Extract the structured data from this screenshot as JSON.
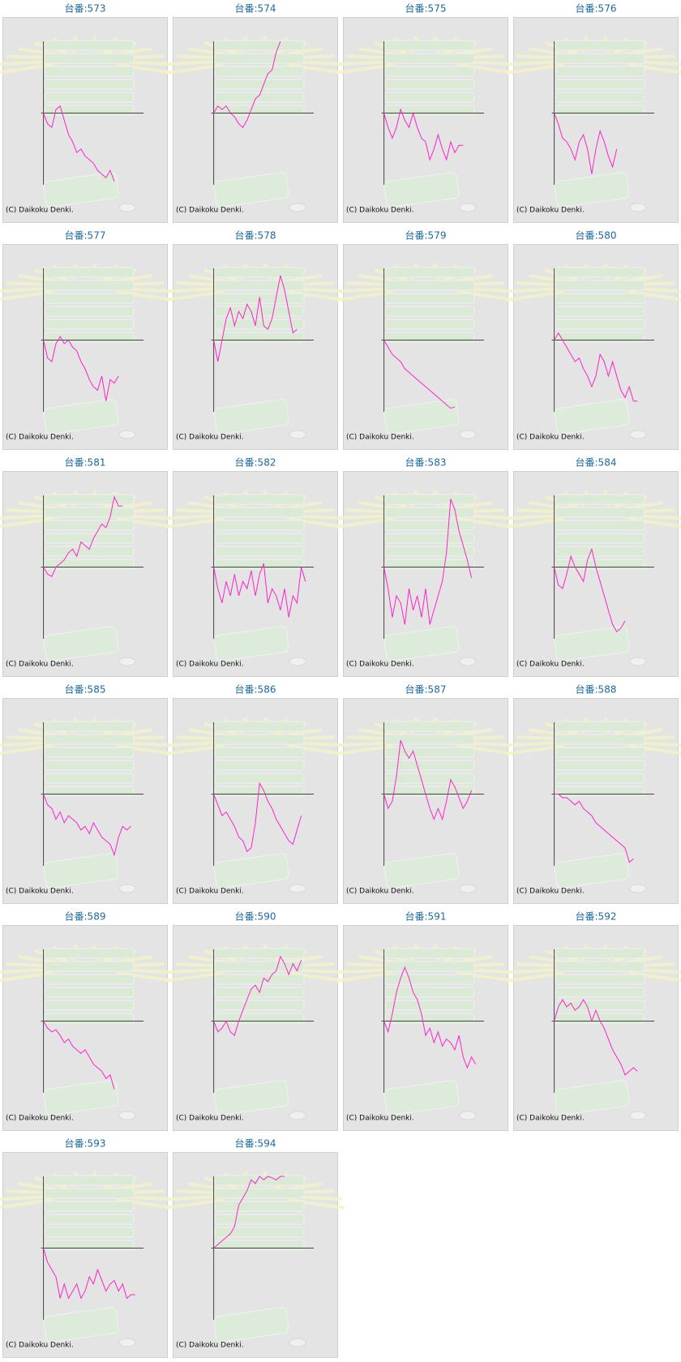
{
  "chart_data": [
    {
      "type": "line",
      "title": "台番:573",
      "footer": "(C) Daikoku Denki.",
      "color": "#ff22cc",
      "xlim": [
        0,
        24
      ],
      "ylim": [
        -10,
        10
      ],
      "values": [
        0,
        -1.5,
        -2,
        0.5,
        1,
        -1,
        -3,
        -4,
        -5.5,
        -5,
        -6,
        -6.5,
        -7,
        -8,
        -8.5,
        -9,
        -8,
        -9.5
      ]
    },
    {
      "type": "line",
      "title": "台番:574",
      "footer": "(C) Daikoku Denki.",
      "color": "#ff22cc",
      "xlim": [
        0,
        24
      ],
      "ylim": [
        -10,
        10
      ],
      "values": [
        0,
        1,
        0.5,
        1,
        0,
        -0.5,
        -1.5,
        -2,
        -1,
        0.5,
        2,
        2.5,
        4,
        5.5,
        6,
        8.5,
        10
      ]
    },
    {
      "type": "line",
      "title": "台番:575",
      "footer": "(C) Daikoku Denki.",
      "color": "#ff22cc",
      "xlim": [
        0,
        24
      ],
      "ylim": [
        -10,
        10
      ],
      "values": [
        0,
        -2,
        -3.5,
        -2,
        0.5,
        -1,
        -2,
        0,
        -2,
        -3.5,
        -4,
        -6.5,
        -5,
        -3,
        -5,
        -6.5,
        -4,
        -5.5,
        -4.5,
        -4.5
      ]
    },
    {
      "type": "line",
      "title": "台番:576",
      "footer": "(C) Daikoku Denki.",
      "color": "#ff22cc",
      "xlim": [
        0,
        24
      ],
      "ylim": [
        -10,
        10
      ],
      "values": [
        0,
        -1.5,
        -3.5,
        -4,
        -5,
        -6.5,
        -4,
        -3,
        -5,
        -8.5,
        -5,
        -2.5,
        -4,
        -6,
        -7.5,
        -5
      ]
    },
    {
      "type": "line",
      "title": "台番:577",
      "footer": "(C) Daikoku Denki.",
      "color": "#ff22cc",
      "xlim": [
        0,
        24
      ],
      "ylim": [
        -10,
        10
      ],
      "values": [
        0,
        -2.5,
        -3,
        -0.5,
        0.5,
        -0.5,
        0,
        -1,
        -1.5,
        -3,
        -4,
        -5.5,
        -6.5,
        -7,
        -5,
        -8.5,
        -5.5,
        -6,
        -5
      ]
    },
    {
      "type": "line",
      "title": "台番:578",
      "footer": "(C) Daikoku Denki.",
      "color": "#ff22cc",
      "xlim": [
        0,
        24
      ],
      "ylim": [
        -10,
        10
      ],
      "values": [
        0,
        -3,
        0,
        3,
        4.5,
        2,
        4,
        3,
        5,
        4,
        2,
        6,
        2,
        1.5,
        3,
        6,
        9,
        7,
        4,
        1,
        1.5
      ]
    },
    {
      "type": "line",
      "title": "台番:579",
      "footer": "(C) Daikoku Denki.",
      "color": "#ff22cc",
      "xlim": [
        0,
        24
      ],
      "ylim": [
        -10,
        10
      ],
      "values": [
        0,
        -1,
        -2,
        -2.5,
        -3,
        -4,
        -4.5,
        -5,
        -5.5,
        -6,
        -6.5,
        -7,
        -7.5,
        -8,
        -8.5,
        -9,
        -9.5,
        -9.3
      ]
    },
    {
      "type": "line",
      "title": "台番:580",
      "footer": "(C) Daikoku Denki.",
      "color": "#ff22cc",
      "xlim": [
        0,
        24
      ],
      "ylim": [
        -10,
        10
      ],
      "values": [
        0,
        1,
        0,
        -1,
        -2,
        -3,
        -2.5,
        -4,
        -5,
        -6.5,
        -5,
        -2,
        -3,
        -5,
        -3,
        -5,
        -7,
        -8,
        -6.5,
        -8.5,
        -8.5
      ]
    },
    {
      "type": "line",
      "title": "台番:581",
      "footer": "(C) Daikoku Denki.",
      "color": "#ff22cc",
      "xlim": [
        0,
        24
      ],
      "ylim": [
        -10,
        10
      ],
      "values": [
        0,
        -1,
        -1.3,
        0,
        0.5,
        1,
        2,
        2.5,
        1.5,
        3.5,
        3,
        2.5,
        4,
        5,
        6,
        5.5,
        7,
        9.8,
        8.5,
        8.5
      ]
    },
    {
      "type": "line",
      "title": "台番:582",
      "footer": "(C) Daikoku Denki.",
      "color": "#ff22cc",
      "xlim": [
        0,
        24
      ],
      "ylim": [
        -10,
        10
      ],
      "values": [
        0,
        -3,
        -5,
        -2,
        -4,
        -1,
        -4,
        -2,
        -3,
        -0.5,
        -4,
        -1,
        0.5,
        -5,
        -3,
        -4,
        -6,
        -3,
        -7,
        -4,
        -5,
        0,
        -2
      ]
    },
    {
      "type": "line",
      "title": "台番:583",
      "footer": "(C) Daikoku Denki.",
      "color": "#ff22cc",
      "xlim": [
        0,
        24
      ],
      "ylim": [
        -10,
        10
      ],
      "values": [
        0,
        -3,
        -7,
        -4,
        -5,
        -8,
        -3,
        -6,
        -4,
        -7,
        -3,
        -8,
        -6,
        -4,
        -2,
        2,
        9.5,
        8,
        5,
        3,
        1,
        -1.5
      ]
    },
    {
      "type": "line",
      "title": "台番:584",
      "footer": "(C) Daikoku Denki.",
      "color": "#ff22cc",
      "xlim": [
        0,
        24
      ],
      "ylim": [
        -10,
        10
      ],
      "values": [
        0,
        -2.5,
        -3,
        -1,
        1.5,
        0,
        -1,
        -2,
        1,
        2.5,
        0,
        -2,
        -4,
        -6,
        -8,
        -9,
        -8.5,
        -7.5
      ]
    },
    {
      "type": "line",
      "title": "台番:585",
      "footer": "(C) Daikoku Denki.",
      "color": "#ff22cc",
      "xlim": [
        0,
        24
      ],
      "ylim": [
        -10,
        10
      ],
      "values": [
        0,
        -1.5,
        -2,
        -3.5,
        -2.5,
        -4,
        -3,
        -3.5,
        -4,
        -5,
        -4.5,
        -5.5,
        -4,
        -5,
        -6,
        -6.5,
        -7,
        -8.5,
        -6,
        -4.5,
        -5,
        -4.5
      ]
    },
    {
      "type": "line",
      "title": "台番:586",
      "footer": "(C) Daikoku Denki.",
      "color": "#ff22cc",
      "xlim": [
        0,
        24
      ],
      "ylim": [
        -10,
        10
      ],
      "values": [
        0,
        -1.5,
        -3,
        -2.5,
        -3.5,
        -4.5,
        -6,
        -6.5,
        -8,
        -7.5,
        -4,
        1.5,
        0.5,
        -1,
        -2,
        -3.5,
        -4.5,
        -5.5,
        -6.5,
        -7,
        -5,
        -3
      ]
    },
    {
      "type": "line",
      "title": "台番:587",
      "footer": "(C) Daikoku Denki.",
      "color": "#ff22cc",
      "xlim": [
        0,
        24
      ],
      "ylim": [
        -10,
        10
      ],
      "values": [
        0,
        -2,
        -1,
        2.5,
        7.5,
        6,
        5,
        6,
        4,
        2,
        0,
        -2,
        -3.5,
        -2,
        -3.5,
        -1,
        2,
        1,
        -0.5,
        -2,
        -1,
        0.5
      ]
    },
    {
      "type": "line",
      "title": "台番:588",
      "footer": "(C) Daikoku Denki.",
      "color": "#ff22cc",
      "xlim": [
        0,
        24
      ],
      "ylim": [
        -10,
        10
      ],
      "values": [
        0,
        0,
        -0.5,
        -0.5,
        -1,
        -1.5,
        -1,
        -2,
        -2.5,
        -3,
        -4,
        -4.5,
        -5,
        -5.5,
        -6,
        -6.5,
        -7,
        -7.5,
        -9.5,
        -9
      ]
    },
    {
      "type": "line",
      "title": "台番:589",
      "footer": "(C) Daikoku Denki.",
      "color": "#ff22cc",
      "xlim": [
        0,
        24
      ],
      "ylim": [
        -10,
        10
      ],
      "values": [
        0,
        -1,
        -1.5,
        -1.2,
        -2,
        -3,
        -2.5,
        -3.5,
        -4,
        -4.5,
        -4,
        -5,
        -6,
        -6.5,
        -7,
        -8,
        -7.5,
        -9.5
      ]
    },
    {
      "type": "line",
      "title": "台番:590",
      "footer": "(C) Daikoku Denki.",
      "color": "#ff22cc",
      "xlim": [
        0,
        24
      ],
      "ylim": [
        -10,
        10
      ],
      "values": [
        0,
        -1.5,
        -1,
        0,
        -1.5,
        -2,
        0,
        1.5,
        3,
        4.5,
        5,
        4,
        6,
        5.5,
        6.5,
        7,
        9,
        8,
        6.5,
        8,
        7,
        8.5
      ]
    },
    {
      "type": "line",
      "title": "台番:591",
      "footer": "(C) Daikoku Denki.",
      "color": "#ff22cc",
      "xlim": [
        0,
        24
      ],
      "ylim": [
        -10,
        10
      ],
      "values": [
        0,
        -1.5,
        1,
        4,
        6,
        7.5,
        6,
        4,
        3,
        1,
        -2,
        -1,
        -3,
        -1.5,
        -3.5,
        -2.5,
        -3,
        -4,
        -2,
        -5,
        -6.5,
        -5,
        -6
      ]
    },
    {
      "type": "line",
      "title": "台番:592",
      "footer": "(C) Daikoku Denki.",
      "color": "#ff22cc",
      "xlim": [
        0,
        24
      ],
      "ylim": [
        -10,
        10
      ],
      "values": [
        0,
        2,
        3,
        2,
        2.5,
        1.5,
        2,
        3,
        2,
        0,
        1.5,
        0,
        -1,
        -2.5,
        -4,
        -5,
        -6,
        -7.5,
        -7,
        -6.5,
        -7
      ]
    },
    {
      "type": "line",
      "title": "台番:593",
      "footer": "(C) Daikoku Denki.",
      "color": "#ff22cc",
      "xlim": [
        0,
        24
      ],
      "ylim": [
        -10,
        10
      ],
      "values": [
        0,
        -2,
        -3,
        -4,
        -7,
        -5,
        -7,
        -6,
        -5,
        -7,
        -6,
        -4,
        -5,
        -3,
        -4.5,
        -6,
        -5,
        -4.5,
        -6,
        -5,
        -7,
        -6.5,
        -6.5
      ]
    },
    {
      "type": "line",
      "title": "台番:594",
      "footer": "(C) Daikoku Denki.",
      "color": "#ff22cc",
      "xlim": [
        0,
        24
      ],
      "ylim": [
        -10,
        10
      ],
      "values": [
        0,
        0.5,
        1,
        1.5,
        2,
        3,
        6,
        7,
        8,
        9.5,
        9,
        10,
        9.5,
        10,
        9.8,
        9.5,
        10,
        10
      ]
    }
  ]
}
